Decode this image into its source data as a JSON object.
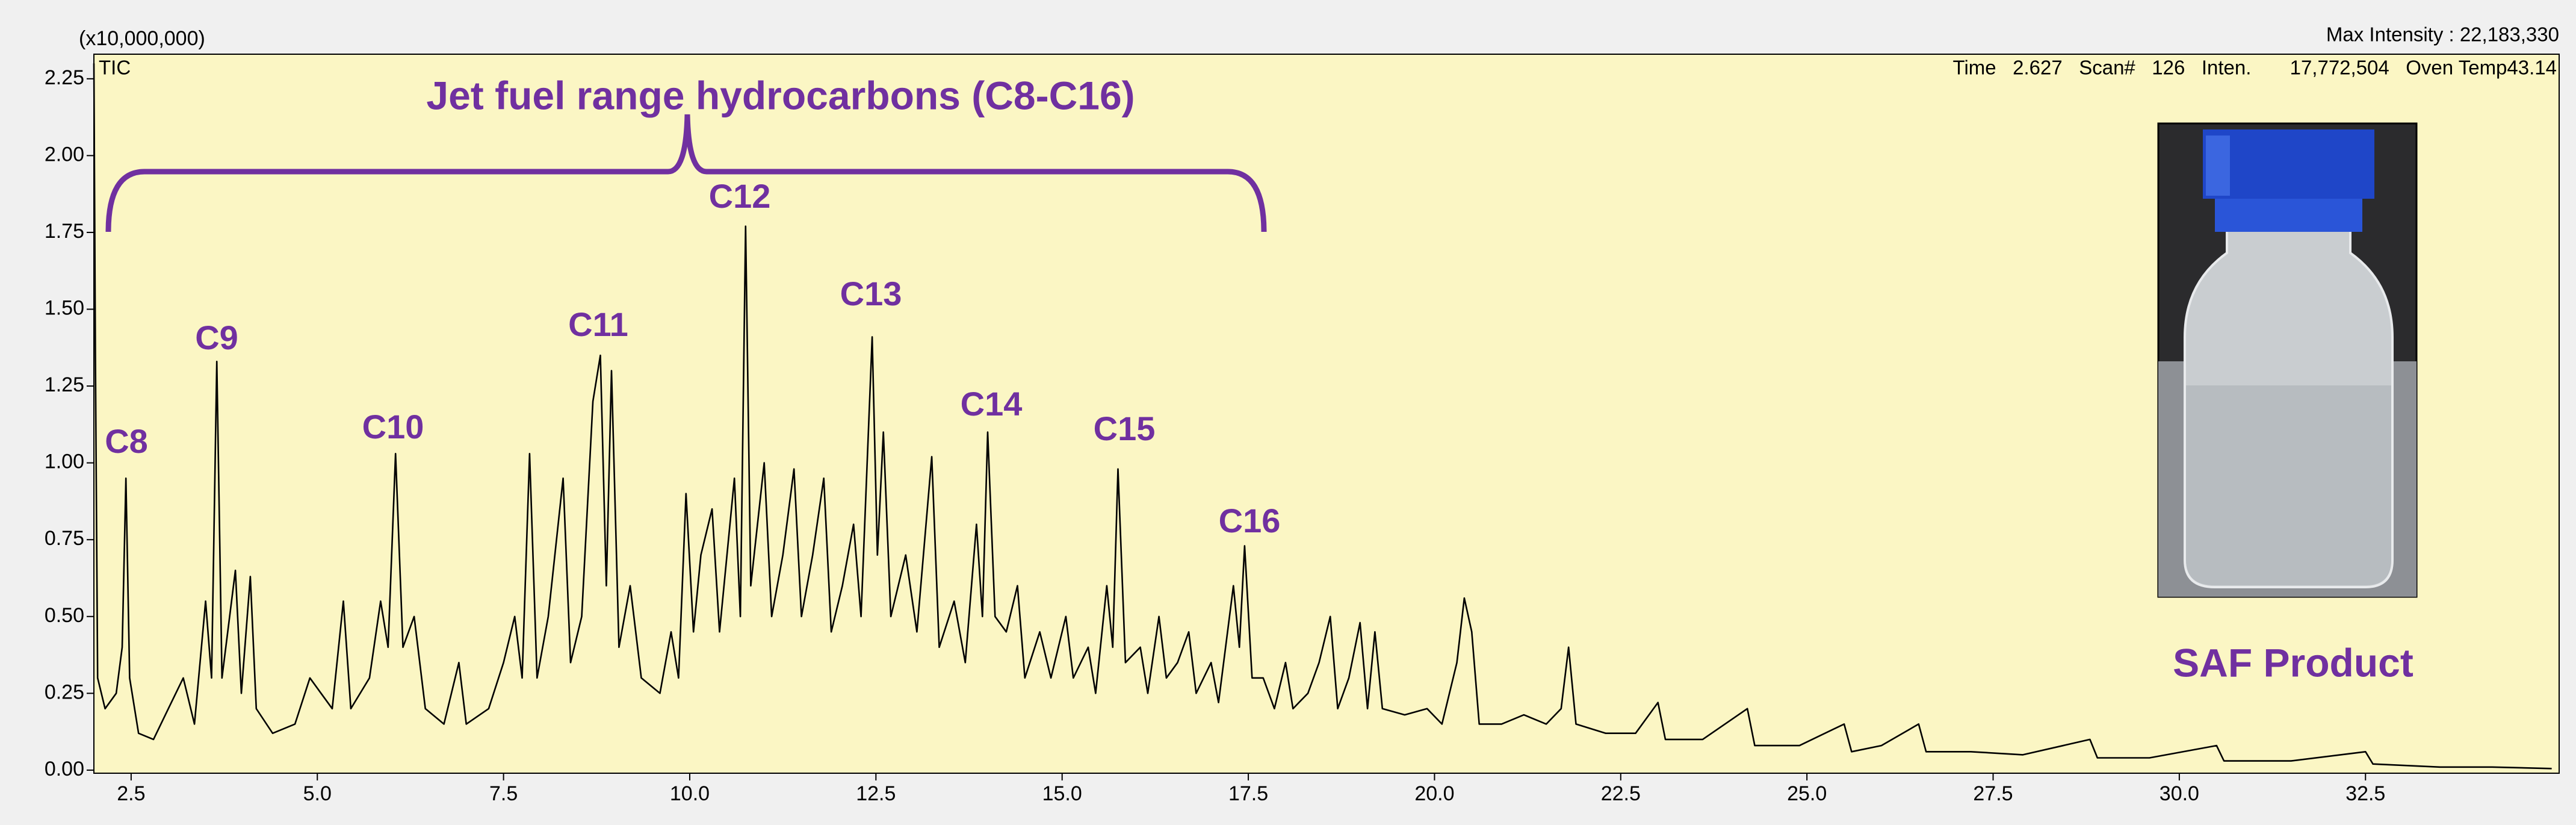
{
  "chart_data": {
    "type": "line",
    "unit_label": "(x10,000,000)",
    "max_intensity": "Max Intensity : 22,183,330",
    "status": "Time   2.627   Scan#   126   Inten.       17,772,504   Oven Temp43.14",
    "bracket_label": "Jet fuel range hydrocarbons (C8-C16)",
    "peak_labels": [
      "C8",
      "C9",
      "C10",
      "C11",
      "C12",
      "C13",
      "C14",
      "C15",
      "C16"
    ],
    "inset_label": "SAF Product",
    "xlim": [
      2.0,
      35.1
    ],
    "ylim": [
      -0.01,
      2.33
    ],
    "xticks": [
      2.5,
      {
        "value": 5,
        "label": "5.0"
      },
      7.5,
      {
        "value": 10,
        "label": "10.0"
      },
      12.5,
      {
        "value": 15,
        "label": "15.0"
      },
      17.5,
      {
        "value": 20,
        "label": "20.0"
      },
      22.5,
      {
        "value": 25,
        "label": "25.0"
      },
      27.5,
      {
        "value": 30,
        "label": "30.0"
      },
      32.5
    ],
    "yticks": [
      {
        "value": 0,
        "label": "0.00"
      },
      0.25,
      {
        "value": 0.5,
        "label": "0.50"
      },
      0.75,
      {
        "value": 1,
        "label": "1.00"
      },
      1.25,
      {
        "value": 1.5,
        "label": "1.50"
      },
      1.75,
      {
        "value": 2,
        "label": "2.00"
      },
      2.25
    ],
    "x": [
      2.0,
      2.02,
      2.05,
      2.15,
      2.3,
      2.38,
      2.43,
      2.48,
      2.6,
      2.8,
      3.0,
      3.2,
      3.35,
      3.5,
      3.58,
      3.65,
      3.72,
      3.9,
      3.98,
      4.1,
      4.18,
      4.4,
      4.7,
      4.9,
      5.05,
      5.2,
      5.35,
      5.45,
      5.7,
      5.85,
      5.95,
      6.05,
      6.15,
      6.3,
      6.45,
      6.7,
      6.9,
      7.0,
      7.3,
      7.5,
      7.65,
      7.75,
      7.85,
      7.95,
      8.1,
      8.3,
      8.4,
      8.55,
      8.7,
      8.8,
      8.88,
      8.95,
      9.05,
      9.2,
      9.35,
      9.6,
      9.75,
      9.85,
      9.95,
      10.05,
      10.15,
      10.3,
      10.4,
      10.6,
      10.68,
      10.75,
      10.82,
      11.0,
      11.1,
      11.25,
      11.4,
      11.5,
      11.65,
      11.8,
      11.9,
      12.05,
      12.2,
      12.3,
      12.45,
      12.52,
      12.6,
      12.7,
      12.9,
      13.05,
      13.25,
      13.35,
      13.55,
      13.7,
      13.85,
      13.93,
      14.0,
      14.1,
      14.25,
      14.4,
      14.5,
      14.7,
      14.85,
      15.05,
      15.15,
      15.35,
      15.45,
      15.6,
      15.68,
      15.75,
      15.85,
      16.05,
      16.15,
      16.3,
      16.4,
      16.55,
      16.7,
      16.8,
      17.0,
      17.1,
      17.3,
      17.38,
      17.45,
      17.55,
      17.7,
      17.85,
      18.0,
      18.1,
      18.3,
      18.45,
      18.6,
      18.7,
      18.85,
      19.0,
      19.1,
      19.2,
      19.3,
      19.6,
      19.9,
      20.1,
      20.3,
      20.4,
      20.5,
      20.6,
      20.9,
      21.2,
      21.5,
      21.7,
      21.8,
      21.9,
      22.3,
      22.7,
      23.0,
      23.1,
      23.6,
      24.2,
      24.3,
      24.9,
      25.5,
      25.6,
      26.0,
      26.5,
      26.6,
      27.2,
      27.9,
      28.8,
      28.9,
      29.6,
      30.5,
      30.6,
      31.5,
      32.5,
      32.6,
      33.5,
      34.2,
      35.0
    ],
    "series": [
      {
        "name": "TIC",
        "color": "#000000",
        "values": [
          2.3,
          1.35,
          0.3,
          0.2,
          0.25,
          0.4,
          0.95,
          0.3,
          0.12,
          0.1,
          0.2,
          0.3,
          0.15,
          0.55,
          0.3,
          1.33,
          0.3,
          0.65,
          0.25,
          0.63,
          0.2,
          0.12,
          0.15,
          0.3,
          0.25,
          0.2,
          0.55,
          0.2,
          0.3,
          0.55,
          0.4,
          1.03,
          0.4,
          0.5,
          0.2,
          0.15,
          0.35,
          0.15,
          0.2,
          0.35,
          0.5,
          0.3,
          1.03,
          0.3,
          0.5,
          0.95,
          0.35,
          0.5,
          1.2,
          1.35,
          0.6,
          1.3,
          0.4,
          0.6,
          0.3,
          0.25,
          0.45,
          0.3,
          0.9,
          0.45,
          0.7,
          0.85,
          0.45,
          0.95,
          0.5,
          1.77,
          0.6,
          1.0,
          0.5,
          0.7,
          0.98,
          0.5,
          0.7,
          0.95,
          0.45,
          0.6,
          0.8,
          0.5,
          1.41,
          0.7,
          1.1,
          0.5,
          0.7,
          0.45,
          1.02,
          0.4,
          0.55,
          0.35,
          0.8,
          0.5,
          1.1,
          0.5,
          0.45,
          0.6,
          0.3,
          0.45,
          0.3,
          0.5,
          0.3,
          0.4,
          0.25,
          0.6,
          0.4,
          0.98,
          0.35,
          0.4,
          0.25,
          0.5,
          0.3,
          0.35,
          0.45,
          0.25,
          0.35,
          0.22,
          0.6,
          0.4,
          0.73,
          0.3,
          0.3,
          0.2,
          0.35,
          0.2,
          0.25,
          0.35,
          0.5,
          0.2,
          0.3,
          0.48,
          0.2,
          0.45,
          0.2,
          0.18,
          0.2,
          0.15,
          0.35,
          0.56,
          0.45,
          0.15,
          0.15,
          0.18,
          0.15,
          0.2,
          0.4,
          0.15,
          0.12,
          0.12,
          0.22,
          0.1,
          0.1,
          0.2,
          0.08,
          0.08,
          0.15,
          0.06,
          0.08,
          0.15,
          0.06,
          0.06,
          0.05,
          0.1,
          0.04,
          0.04,
          0.08,
          0.03,
          0.03,
          0.06,
          0.02,
          0.01,
          0.01,
          0.005
        ]
      }
    ]
  }
}
